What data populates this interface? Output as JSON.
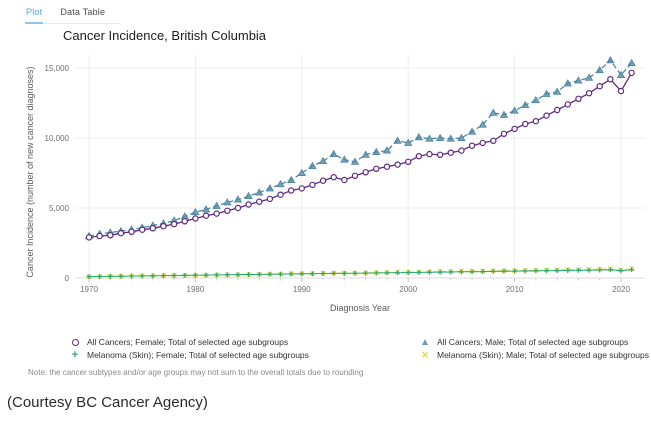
{
  "tabs": [
    {
      "label": "Plot",
      "active": true
    },
    {
      "label": "Data Table",
      "active": false
    }
  ],
  "title": "Cancer Incidence, British Columbia",
  "note": "Note: the cancer subtypes and/or age groups may not sum to the overall totals due to rounding",
  "caption": "(Courtesy BC Cancer Agency)",
  "colors": {
    "tab_active": "#4fa8d8",
    "female_all": "#5e2b82",
    "male_all": "#4e86a3",
    "melanoma_female": "#2aa876",
    "melanoma_male": "#ddd83a",
    "gridline": "#ededed",
    "axis_text": "#6e6e6e"
  },
  "chart_data": {
    "type": "line",
    "title": "Cancer Incidence, British Columbia",
    "xlabel": "Diagnosis Year",
    "ylabel": "Cancer Incidence (number of new cancer diagnoses)",
    "x_ticks": [
      1970,
      1980,
      1990,
      2000,
      2010,
      2020
    ],
    "y_ticks": [
      0,
      5000,
      10000,
      15000
    ],
    "xlim": [
      1968,
      2022.5
    ],
    "ylim": [
      0,
      16000
    ],
    "grid": true,
    "legend_position": "bottom",
    "x": [
      1970,
      1971,
      1972,
      1973,
      1974,
      1975,
      1976,
      1977,
      1978,
      1979,
      1980,
      1981,
      1982,
      1983,
      1984,
      1985,
      1986,
      1987,
      1988,
      1989,
      1990,
      1991,
      1992,
      1993,
      1994,
      1995,
      1996,
      1997,
      1998,
      1999,
      2000,
      2001,
      2002,
      2003,
      2004,
      2005,
      2006,
      2007,
      2008,
      2009,
      2010,
      2011,
      2012,
      2013,
      2014,
      2015,
      2016,
      2017,
      2018,
      2019,
      2020,
      2021
    ],
    "series": [
      {
        "name": "All Cancers; Female; Total of selected age subgroups",
        "color": "#5e2b82",
        "marker": "circle-open",
        "line": "solid",
        "values": [
          2900,
          3000,
          3050,
          3200,
          3300,
          3450,
          3550,
          3700,
          3850,
          4050,
          4250,
          4450,
          4600,
          4800,
          5000,
          5250,
          5450,
          5650,
          5950,
          6250,
          6400,
          6650,
          6950,
          7200,
          7000,
          7300,
          7550,
          7800,
          7950,
          8100,
          8300,
          8700,
          8850,
          8800,
          8950,
          9100,
          9450,
          9650,
          9800,
          10300,
          10650,
          11000,
          11200,
          11600,
          12000,
          12400,
          12800,
          13200,
          13700,
          14200,
          13350,
          14650
        ]
      },
      {
        "name": "All Cancers; Male; Total of selected age subgroups",
        "color": "#4e86a3",
        "marker": "triangle",
        "line": "dashed",
        "values": [
          3000,
          3150,
          3250,
          3350,
          3450,
          3600,
          3750,
          3900,
          4100,
          4400,
          4700,
          4900,
          5150,
          5400,
          5600,
          5850,
          6100,
          6400,
          6700,
          7000,
          7500,
          8000,
          8350,
          8850,
          8450,
          8300,
          8800,
          9000,
          9100,
          9800,
          9650,
          10050,
          9950,
          10000,
          9950,
          10000,
          10450,
          10950,
          11800,
          11650,
          11950,
          12350,
          12700,
          13150,
          13300,
          13900,
          14100,
          14300,
          14850,
          15550,
          14500,
          15350
        ]
      },
      {
        "name": "Melanoma (Skin); Female; Total of selected age subgroups",
        "color": "#2aa876",
        "marker": "plus",
        "line": "solid",
        "values": [
          100,
          110,
          120,
          130,
          140,
          150,
          160,
          170,
          180,
          190,
          200,
          210,
          220,
          230,
          240,
          250,
          260,
          270,
          280,
          290,
          300,
          310,
          320,
          330,
          330,
          340,
          350,
          360,
          370,
          380,
          390,
          400,
          410,
          420,
          430,
          440,
          450,
          460,
          470,
          480,
          490,
          500,
          510,
          520,
          530,
          540,
          550,
          560,
          570,
          590,
          520,
          600
        ]
      },
      {
        "name": "Melanoma (Skin); Male; Total of selected age subgroups",
        "color": "#ddd83a",
        "marker": "x",
        "line": "dashed",
        "values": [
          90,
          100,
          110,
          120,
          130,
          140,
          150,
          160,
          170,
          180,
          190,
          200,
          215,
          225,
          235,
          245,
          260,
          270,
          280,
          295,
          305,
          315,
          330,
          340,
          350,
          360,
          375,
          385,
          395,
          410,
          420,
          430,
          445,
          455,
          465,
          480,
          490,
          500,
          515,
          525,
          535,
          550,
          560,
          570,
          585,
          595,
          605,
          620,
          630,
          645,
          580,
          660
        ]
      }
    ]
  }
}
